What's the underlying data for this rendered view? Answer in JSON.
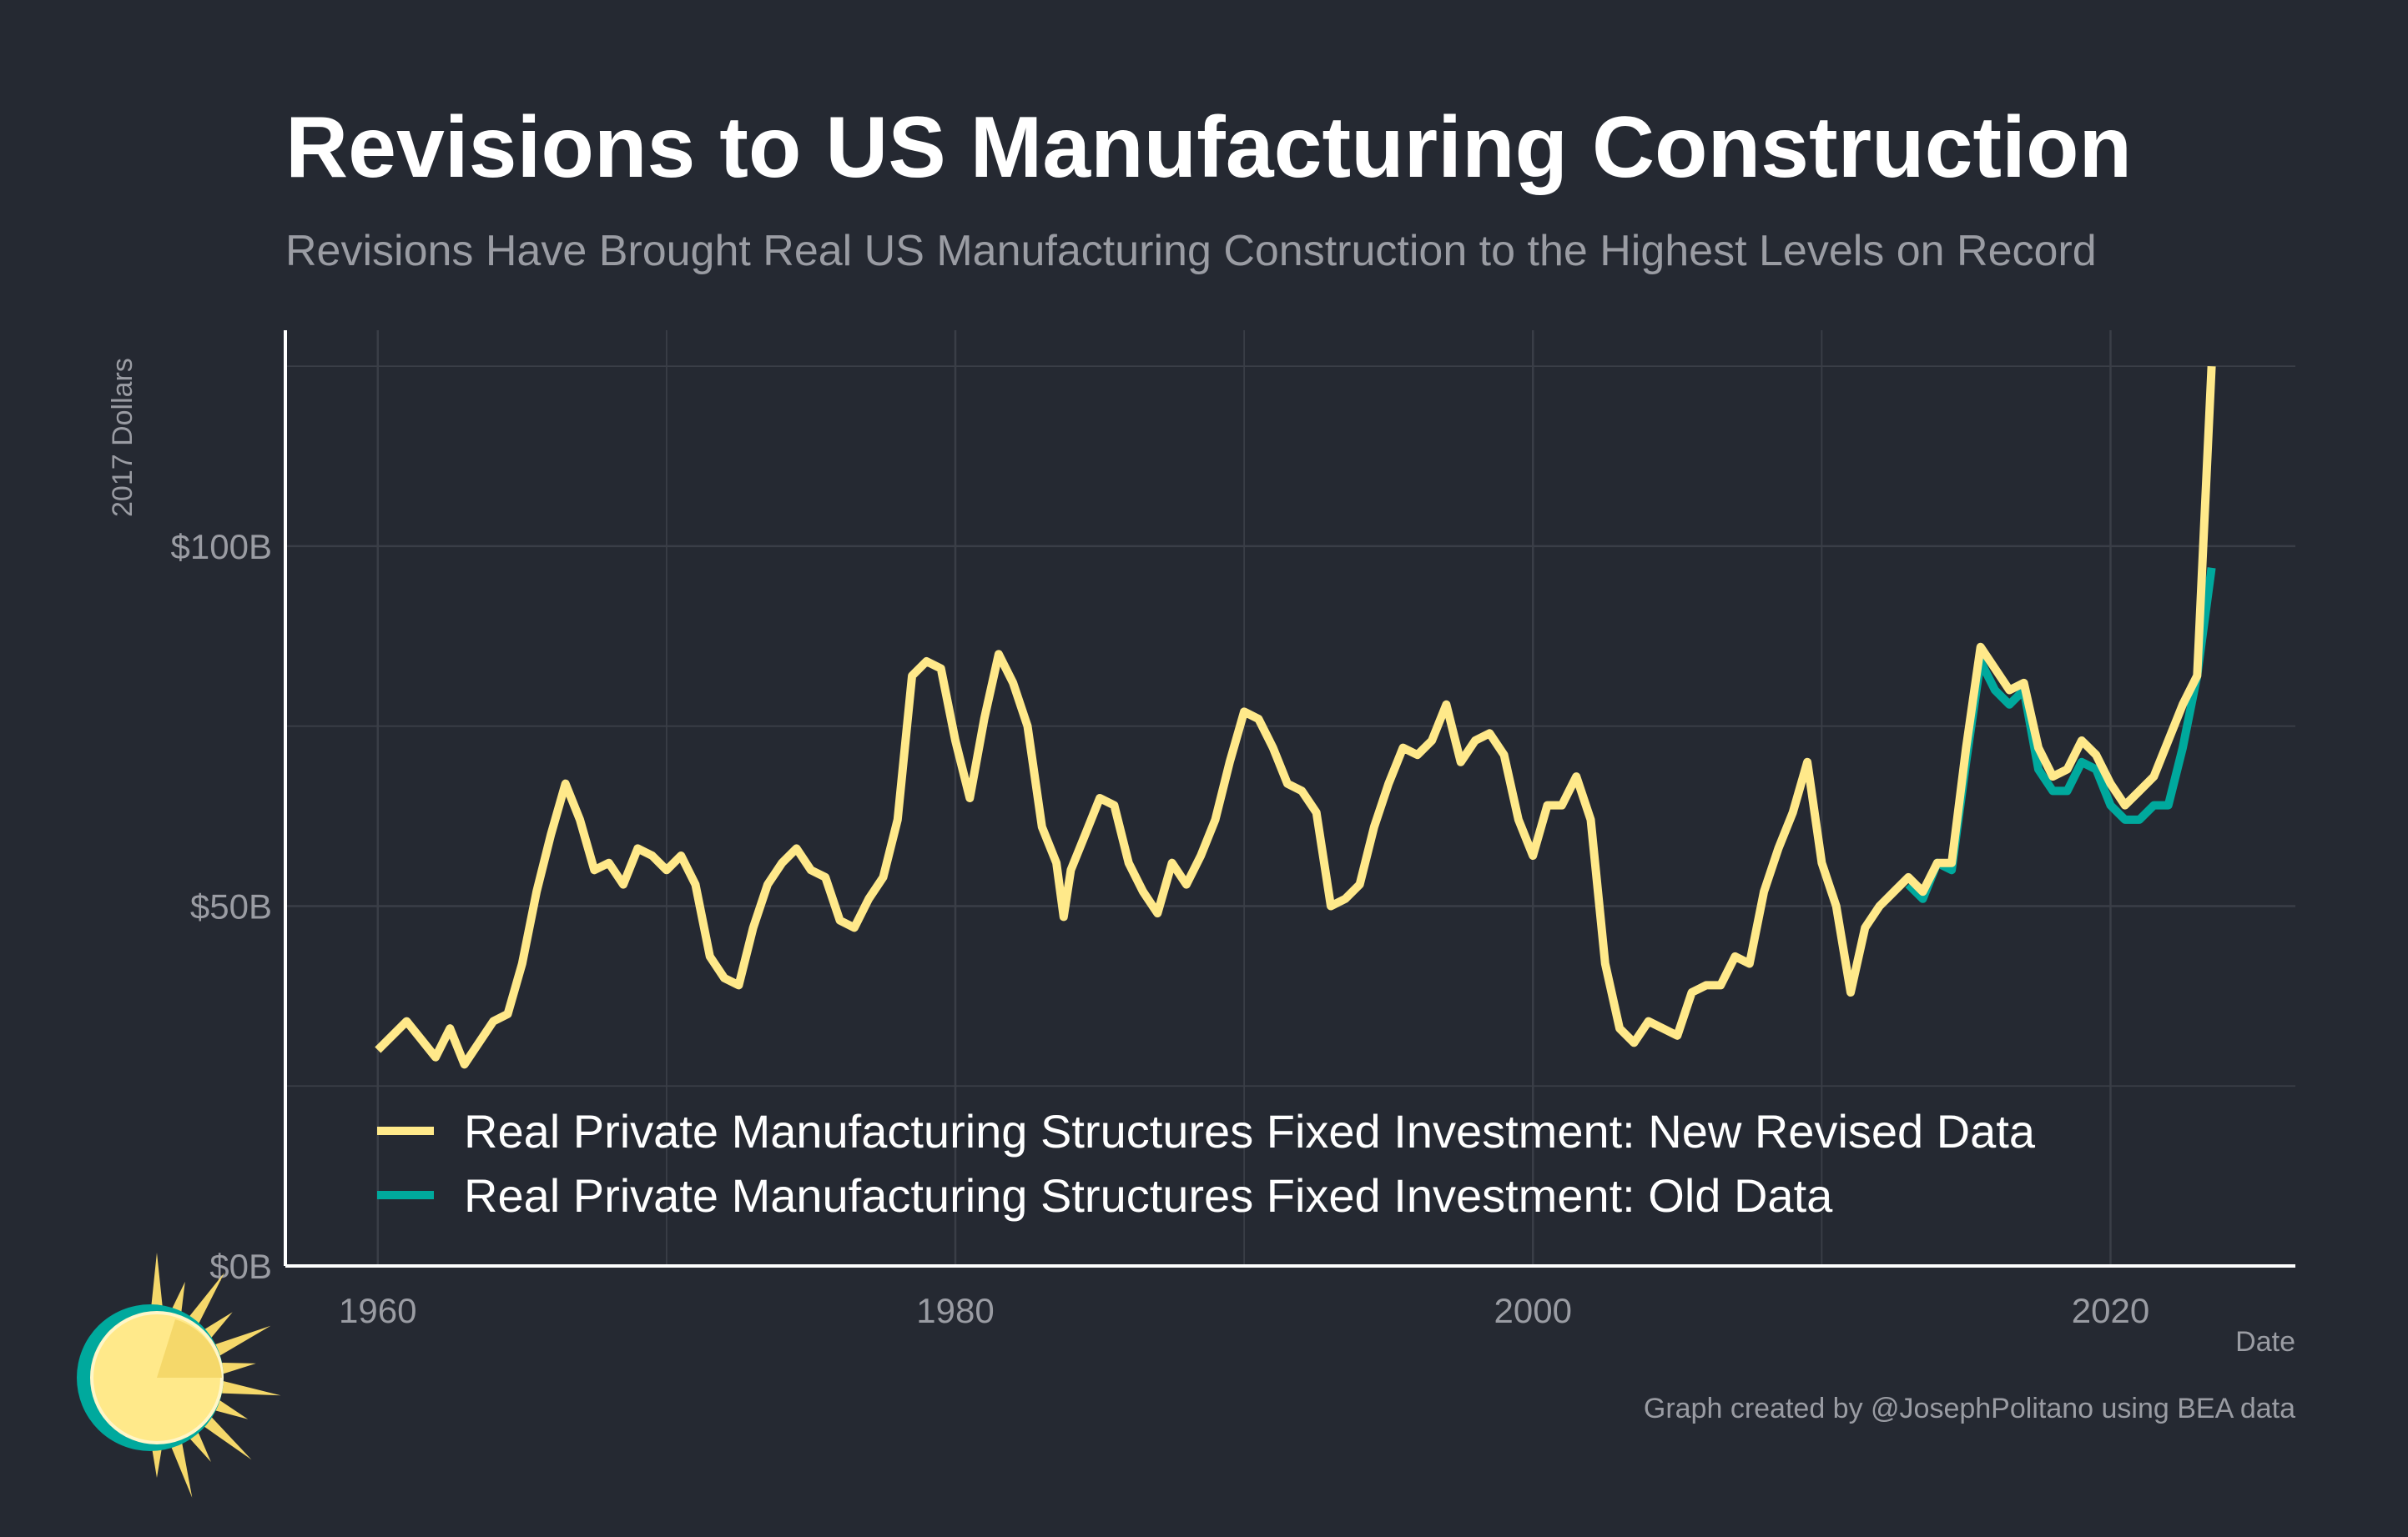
{
  "chart_data": {
    "type": "line",
    "title": "Revisions to US Manufacturing Construction",
    "subtitle": "Revisions Have Brought Real US Manufacturing Construction to the Highest Levels on Record",
    "xlabel": "Date",
    "ylabel": "2017 Dollars",
    "xlim": [
      1956.8,
      2026.4
    ],
    "ylim": [
      0,
      130
    ],
    "x_ticks": [
      {
        "value": 1960,
        "label": "1960"
      },
      {
        "value": 1980,
        "label": "1980"
      },
      {
        "value": 2000,
        "label": "2000"
      },
      {
        "value": 2020,
        "label": "2020"
      }
    ],
    "y_ticks": [
      {
        "value": 0,
        "label": "$0B"
      },
      {
        "value": 50,
        "label": "$50B"
      },
      {
        "value": 100,
        "label": "$100B"
      }
    ],
    "grid": true,
    "legend_position": "bottom-left inside",
    "credit": "Graph created by @JosephPolitano using BEA data",
    "series": [
      {
        "name": "Real Private Manufacturing Structures Fixed Investment: New Revised Data",
        "color": "#ffe98a",
        "x": [
          1960,
          1961,
          1962,
          1962.5,
          1963,
          1964,
          1964.5,
          1965,
          1965.5,
          1966,
          1966.5,
          1967,
          1967.5,
          1968,
          1968.5,
          1969,
          1969.5,
          1970,
          1970.5,
          1971,
          1971.5,
          1972,
          1972.5,
          1973,
          1973.5,
          1974,
          1974.5,
          1975,
          1975.5,
          1976,
          1976.5,
          1977,
          1977.5,
          1978,
          1978.5,
          1979,
          1979.5,
          1980,
          1980.5,
          1981,
          1981.5,
          1982,
          1982.5,
          1983,
          1983.5,
          1983.75,
          1984,
          1984.5,
          1985,
          1985.5,
          1986,
          1986.5,
          1987,
          1987.5,
          1988,
          1988.5,
          1989,
          1989.5,
          1990,
          1990.5,
          1991,
          1991.5,
          1992,
          1992.5,
          1993,
          1993.5,
          1994,
          1994.5,
          1995,
          1995.5,
          1996,
          1996.5,
          1997,
          1997.5,
          1998,
          1998.5,
          1999,
          1999.5,
          2000,
          2000.5,
          2001,
          2001.5,
          2002,
          2002.5,
          2003,
          2003.5,
          2004,
          2004.5,
          2005,
          2005.5,
          2006,
          2006.5,
          2007,
          2007.5,
          2008,
          2008.5,
          2009,
          2009.5,
          2010,
          2010.5,
          2011,
          2011.5,
          2012,
          2012.5,
          2013,
          2013.5,
          2014,
          2014.5,
          2015,
          2015.5,
          2016,
          2016.5,
          2017,
          2017.5,
          2018,
          2018.5,
          2019,
          2019.5,
          2020,
          2020.5,
          2021,
          2021.5,
          2022,
          2022.5,
          2023,
          2023.5
        ],
        "values": [
          30,
          34,
          29,
          33,
          28,
          34,
          35,
          42,
          52,
          60,
          67,
          62,
          55,
          56,
          53,
          58,
          57,
          55,
          57,
          53,
          43,
          40,
          39,
          47,
          53,
          56,
          58,
          55,
          54,
          48,
          47,
          51,
          54,
          62,
          82,
          84,
          83,
          73,
          65,
          76,
          85,
          81,
          75,
          61,
          56,
          48.5,
          55,
          60,
          65,
          64,
          56,
          52,
          49,
          56,
          53,
          57,
          62,
          70,
          77,
          76,
          72,
          67,
          66,
          63,
          50,
          51,
          53,
          61,
          67,
          72,
          71,
          73,
          78,
          70,
          73,
          74,
          71,
          62,
          57,
          64,
          64,
          68,
          62,
          42,
          33,
          31,
          34,
          33,
          32,
          38,
          39,
          39,
          43,
          42,
          52,
          58,
          63,
          70,
          56,
          50,
          38,
          47,
          50,
          52,
          54,
          52,
          56,
          56,
          72,
          86,
          83,
          80,
          81,
          72,
          68,
          69,
          73,
          71,
          67,
          64,
          66,
          68,
          73,
          78,
          82,
          125
        ]
      },
      {
        "name": "Real Private Manufacturing Structures Fixed Investment: Old Data",
        "color": "#00a99d",
        "x": [
          2013,
          2013.5,
          2014,
          2014.5,
          2015,
          2015.5,
          2016,
          2016.5,
          2017,
          2017.5,
          2018,
          2018.5,
          2019,
          2019.5,
          2020,
          2020.5,
          2021,
          2021.5,
          2022,
          2022.5,
          2023,
          2023.5
        ],
        "values": [
          53,
          51,
          56,
          55,
          70,
          84,
          80,
          78,
          80,
          69,
          66,
          66,
          70,
          69,
          64,
          62,
          62,
          64,
          64,
          72,
          82,
          97
        ]
      }
    ]
  },
  "logo": {
    "colors": {
      "ring": "#00a99d",
      "sun": "#ffe98a",
      "rays": "#f5d86a"
    }
  }
}
